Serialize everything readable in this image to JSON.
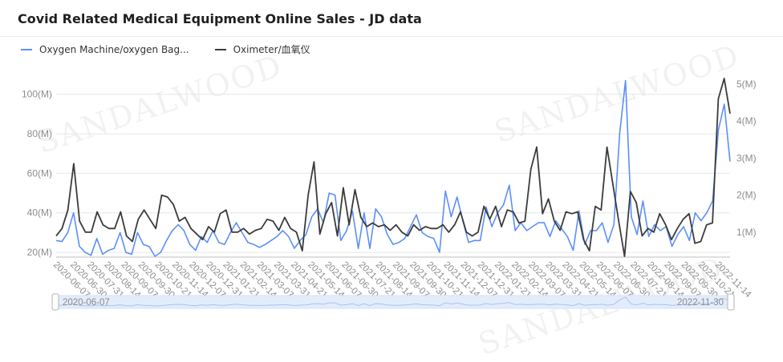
{
  "title": "Covid Related Medical Equipment Online Sales - JD data",
  "watermark": "SANDALWOOD",
  "colors": {
    "series1": "#5b8ff9",
    "series2": "#3b3b3b",
    "grid": "#e6e6e6",
    "slider": "#e3ecfb"
  },
  "slider": {
    "start": "2020-06-07",
    "end": "2022-11-30"
  },
  "chart_data": {
    "type": "line",
    "title": "Covid Related Medical Equipment Online Sales - JD data",
    "grid": true,
    "legend_position": "top-left",
    "x_ticks": [
      "2020-06-07",
      "2020-06-30",
      "2020-07-31",
      "2020-08-14",
      "2020-09-07",
      "2020-09-30",
      "2020-10-21",
      "2020-11-14",
      "2020-12-07",
      "2020-12-31",
      "2021-01-21",
      "2021-02-14",
      "2021-03-07",
      "2021-03-31",
      "2021-04-21",
      "2021-05-14",
      "2021-06-07",
      "2021-06-30",
      "2021-07-21",
      "2021-08-14",
      "2021-09-07",
      "2021-09-30",
      "2021-10-21",
      "2021-11-14",
      "2021-12-07",
      "2021-12-31",
      "2022-01-21",
      "2022-02-14",
      "2022-03-07",
      "2022-03-31",
      "2022-04-21",
      "2022-05-14",
      "2022-06-07",
      "2022-06-30",
      "2022-07-21",
      "2022-08-14",
      "2022-09-07",
      "2022-09-30",
      "2022-10-21",
      "2022-11-14"
    ],
    "left_axis": {
      "series": "Oxygen Machine/oxygen Bag...",
      "ticks": [
        "20(M)",
        "40(M)",
        "60(M)",
        "80(M)",
        "100(M)"
      ],
      "tick_values": [
        20,
        40,
        60,
        80,
        100
      ],
      "ylim": [
        18,
        108
      ],
      "unit": "M"
    },
    "right_axis": {
      "series": "Oximeter/血氧仪",
      "ticks": [
        "1(M)",
        "2(M)",
        "3(M)",
        "4(M)",
        "5(M)"
      ],
      "tick_values": [
        1,
        2,
        3,
        4,
        5
      ],
      "ylim": [
        0.35,
        5.15
      ],
      "unit": "M"
    },
    "series": [
      {
        "name": "Oxygen Machine/oxygen Bag...",
        "axis": "left",
        "values": [
          26,
          25.5,
          30,
          40,
          23,
          20,
          18.5,
          27,
          19,
          21,
          22,
          30,
          20,
          19,
          30,
          24,
          23,
          18,
          20,
          26,
          31,
          34,
          31,
          24,
          21,
          28,
          25,
          31,
          25,
          24,
          30,
          35,
          30,
          25,
          24,
          22.5,
          24,
          26,
          28,
          31,
          28,
          22,
          26,
          29,
          38,
          42,
          35,
          50,
          49,
          26,
          31,
          41,
          22,
          40,
          22,
          42,
          38,
          29,
          24,
          25,
          27,
          33,
          39,
          30,
          28,
          27,
          20,
          51,
          38,
          48,
          36,
          25,
          26,
          26,
          43,
          33,
          40,
          44,
          54,
          31,
          35,
          31,
          33,
          35,
          35,
          28,
          36,
          32,
          28,
          21,
          41,
          24,
          31,
          31,
          35,
          25,
          34,
          80,
          107,
          38,
          29,
          46,
          28,
          34,
          31,
          33,
          23,
          29,
          33,
          26,
          40,
          36,
          40,
          46,
          82,
          95,
          66
        ]
      },
      {
        "name": "Oximeter/血氧仪",
        "axis": "right",
        "values": [
          0.9,
          1.1,
          1.6,
          2.85,
          1.3,
          1.0,
          1.0,
          1.55,
          1.2,
          1.1,
          1.1,
          1.55,
          0.9,
          0.75,
          1.35,
          1.6,
          1.35,
          1.1,
          2.0,
          1.95,
          1.75,
          1.3,
          1.4,
          1.1,
          0.95,
          0.8,
          1.15,
          1.0,
          1.5,
          1.6,
          1.0,
          1.0,
          1.1,
          0.95,
          1.05,
          1.1,
          1.35,
          1.3,
          1.05,
          1.4,
          1.1,
          1.0,
          0.5,
          2.0,
          2.9,
          0.95,
          1.5,
          1.8,
          0.9,
          2.2,
          1.2,
          2.15,
          1.4,
          1.15,
          1.25,
          1.15,
          1.2,
          1.05,
          1.2,
          1.0,
          0.9,
          1.2,
          1.05,
          1.15,
          1.1,
          1.1,
          1.2,
          1.0,
          1.2,
          1.55,
          1.0,
          0.9,
          1.0,
          1.7,
          1.35,
          1.7,
          1.15,
          1.6,
          1.55,
          1.25,
          1.3,
          2.7,
          3.3,
          1.5,
          1.9,
          1.3,
          1.05,
          1.55,
          1.5,
          1.55,
          0.8,
          0.5,
          1.7,
          1.6,
          3.3,
          2.3,
          1.3,
          0.35,
          2.1,
          1.8,
          0.9,
          1.1,
          1.0,
          1.5,
          1.2,
          0.8,
          1.1,
          1.35,
          1.5,
          0.7,
          0.75,
          1.2,
          1.25,
          4.6,
          5.15,
          4.2
        ]
      }
    ]
  }
}
